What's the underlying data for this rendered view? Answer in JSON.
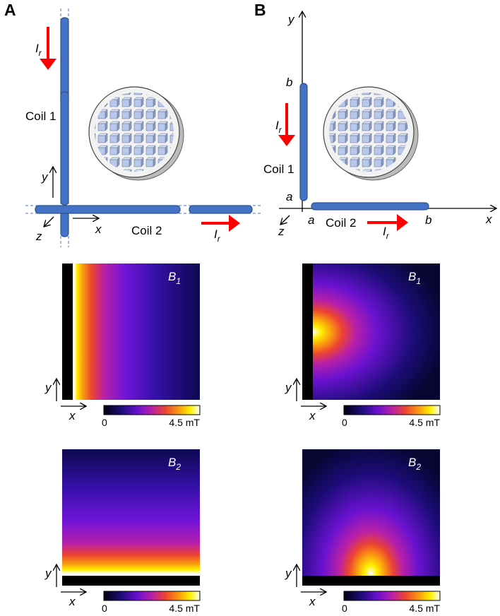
{
  "panels": [
    {
      "label": "A",
      "schematic": {
        "current_labels": [
          {
            "main": "I",
            "sub": "r"
          },
          {
            "main": "I",
            "sub": "r"
          }
        ],
        "coil_labels": [
          "Coil 1",
          "Coil 2"
        ],
        "axes": {
          "x": "x",
          "y": "y",
          "z": "z"
        }
      },
      "maps": [
        {
          "label": {
            "main": "B",
            "sub": "1"
          },
          "axes": {
            "x": "x",
            "y": "y"
          },
          "colorbar": {
            "min_label": "0",
            "max_label": "4.5 mT"
          }
        },
        {
          "label": {
            "main": "B",
            "sub": "2"
          },
          "axes": {
            "x": "x",
            "y": "y"
          },
          "colorbar": {
            "min_label": "0",
            "max_label": "4.5 mT"
          }
        }
      ]
    },
    {
      "label": "B",
      "schematic": {
        "current_labels": [
          {
            "main": "I",
            "sub": "r"
          },
          {
            "main": "I",
            "sub": "r"
          }
        ],
        "coil_labels": [
          "Coil 1",
          "Coil 2"
        ],
        "axes": {
          "x": "x",
          "y": "y",
          "z": "z"
        },
        "axis_marks": [
          "a",
          "b",
          "a",
          "b"
        ]
      },
      "maps": [
        {
          "label": {
            "main": "B",
            "sub": "1"
          },
          "axes": {
            "x": "x",
            "y": "y"
          },
          "colorbar": {
            "min_label": "0",
            "max_label": "4.5 mT"
          }
        },
        {
          "label": {
            "main": "B",
            "sub": "2"
          },
          "axes": {
            "x": "x",
            "y": "y"
          },
          "colorbar": {
            "min_label": "0",
            "max_label": "4.5 mT"
          }
        }
      ]
    }
  ]
}
